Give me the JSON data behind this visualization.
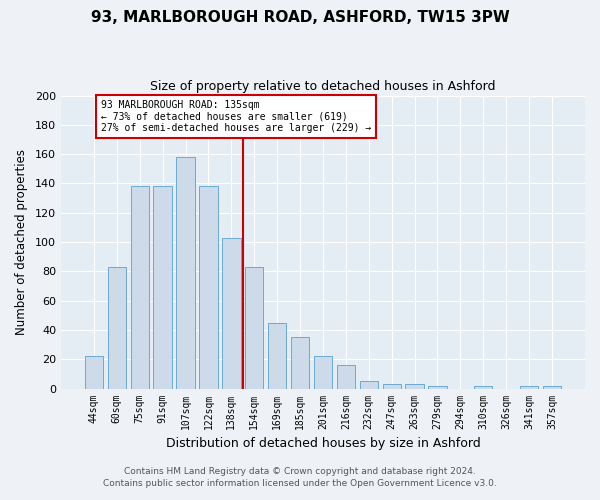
{
  "title": "93, MARLBOROUGH ROAD, ASHFORD, TW15 3PW",
  "subtitle": "Size of property relative to detached houses in Ashford",
  "xlabel": "Distribution of detached houses by size in Ashford",
  "ylabel": "Number of detached properties",
  "categories": [
    "44sqm",
    "60sqm",
    "75sqm",
    "91sqm",
    "107sqm",
    "122sqm",
    "138sqm",
    "154sqm",
    "169sqm",
    "185sqm",
    "201sqm",
    "216sqm",
    "232sqm",
    "247sqm",
    "263sqm",
    "279sqm",
    "294sqm",
    "310sqm",
    "326sqm",
    "341sqm",
    "357sqm"
  ],
  "values": [
    22,
    83,
    138,
    138,
    158,
    138,
    103,
    83,
    45,
    35,
    22,
    16,
    5,
    3,
    3,
    2,
    0,
    2,
    0,
    2,
    2
  ],
  "bar_color": "#ccdaea",
  "bar_edge_color": "#6aaad4",
  "ref_line_label": "93 MARLBOROUGH ROAD: 135sqm",
  "annotation_line1": "← 73% of detached houses are smaller (619)",
  "annotation_line2": "27% of semi-detached houses are larger (229) →",
  "ylim": [
    0,
    200
  ],
  "yticks": [
    0,
    20,
    40,
    60,
    80,
    100,
    120,
    140,
    160,
    180,
    200
  ],
  "footer1": "Contains HM Land Registry data © Crown copyright and database right 2024.",
  "footer2": "Contains public sector information licensed under the Open Government Licence v3.0.",
  "bg_color": "#eef2f6",
  "plot_bg_color": "#e4ecf4",
  "grid_color": "#ffffff",
  "ref_color": "#cc0000",
  "annotation_box_edge": "#cc0000",
  "bar_width": 0.8,
  "ref_bar_index": 6
}
